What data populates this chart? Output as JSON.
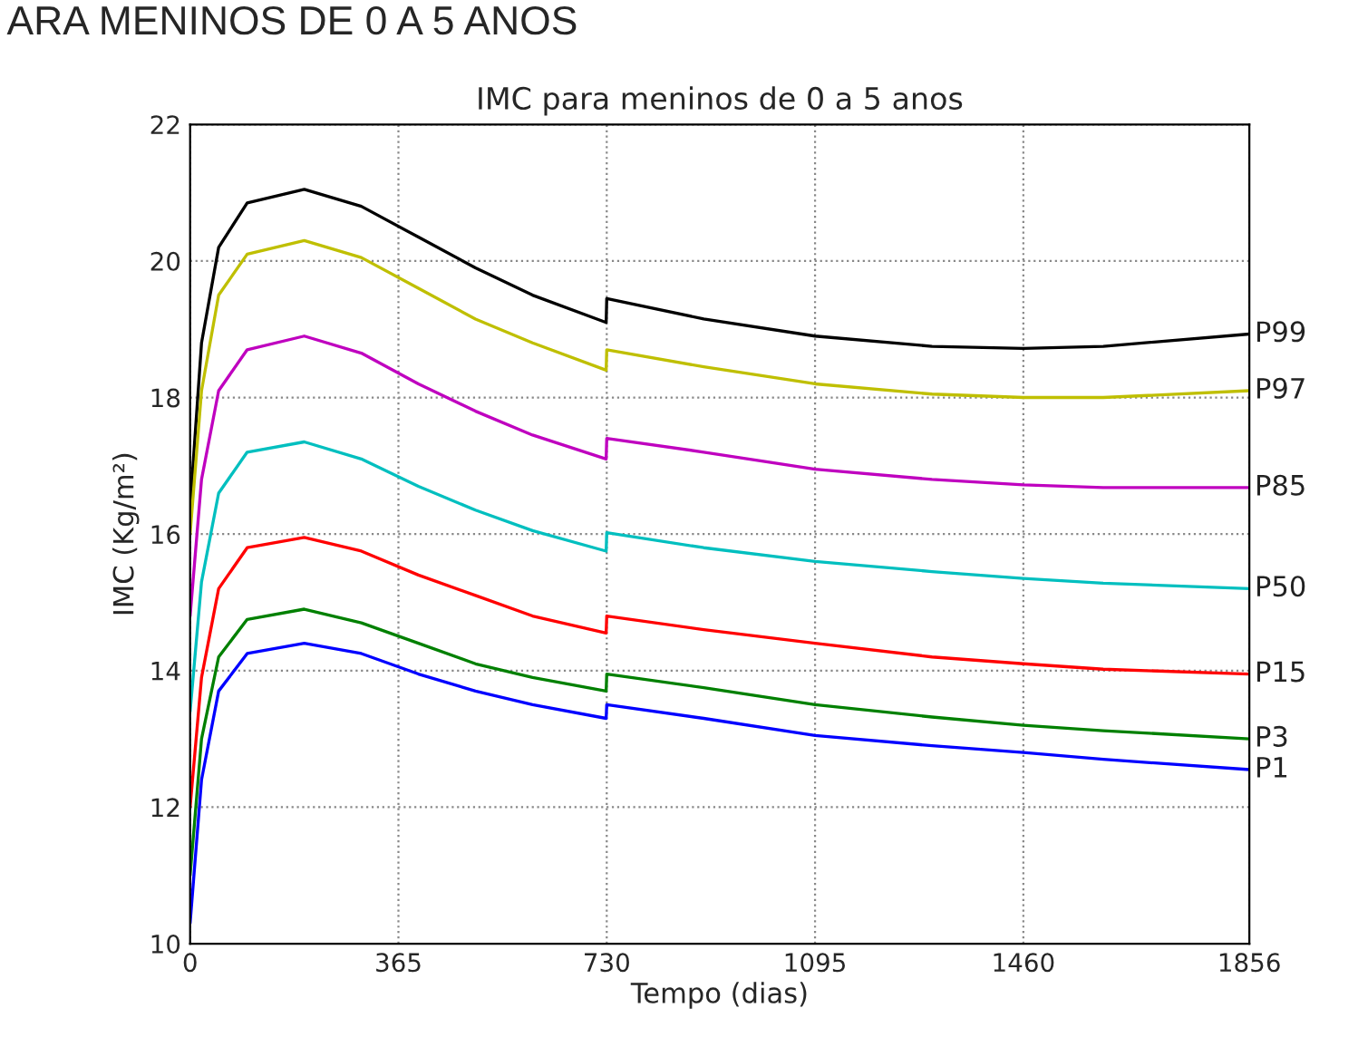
{
  "chart_data": {
    "type": "line",
    "title": "IMC para meninos de 0 a 5 anos",
    "xlabel": "Tempo (dias)",
    "ylabel": "IMC (Kg/m²)",
    "annotations": [
      "ARA MENINOS DE 0 A 5 ANOS"
    ],
    "x": [
      0,
      20,
      50,
      100,
      200,
      300,
      400,
      500,
      600,
      729,
      730,
      900,
      1095,
      1300,
      1460,
      1600,
      1856
    ],
    "series": [
      {
        "name": "P99",
        "color": "#000000",
        "values": [
          16.4,
          18.8,
          20.2,
          20.85,
          21.05,
          20.8,
          20.35,
          19.9,
          19.5,
          19.1,
          19.45,
          19.15,
          18.9,
          18.75,
          18.72,
          18.75,
          18.93
        ]
      },
      {
        "name": "P97",
        "color": "#bfbf00",
        "values": [
          16.0,
          18.1,
          19.5,
          20.1,
          20.3,
          20.05,
          19.6,
          19.15,
          18.8,
          18.4,
          18.7,
          18.45,
          18.2,
          18.05,
          18.0,
          18.0,
          18.1
        ]
      },
      {
        "name": "P85",
        "color": "#bf00bf",
        "values": [
          14.8,
          16.8,
          18.1,
          18.7,
          18.9,
          18.65,
          18.2,
          17.8,
          17.45,
          17.1,
          17.4,
          17.2,
          16.95,
          16.8,
          16.72,
          16.68,
          16.68
        ]
      },
      {
        "name": "P50",
        "color": "#00bfbf",
        "values": [
          13.4,
          15.3,
          16.6,
          17.2,
          17.35,
          17.1,
          16.7,
          16.35,
          16.05,
          15.75,
          16.02,
          15.8,
          15.6,
          15.45,
          15.35,
          15.28,
          15.2
        ]
      },
      {
        "name": "P15",
        "color": "#ff0000",
        "values": [
          12.0,
          13.9,
          15.2,
          15.8,
          15.95,
          15.75,
          15.4,
          15.1,
          14.8,
          14.55,
          14.8,
          14.6,
          14.4,
          14.2,
          14.1,
          14.02,
          13.95
        ]
      },
      {
        "name": "P3",
        "color": "#008000",
        "values": [
          11.0,
          13.0,
          14.2,
          14.75,
          14.9,
          14.7,
          14.4,
          14.1,
          13.9,
          13.7,
          13.95,
          13.75,
          13.5,
          13.32,
          13.2,
          13.12,
          13.0
        ]
      },
      {
        "name": "P1",
        "color": "#0000ff",
        "values": [
          10.3,
          12.4,
          13.7,
          14.25,
          14.4,
          14.25,
          13.95,
          13.7,
          13.5,
          13.3,
          13.5,
          13.3,
          13.05,
          12.9,
          12.8,
          12.7,
          12.55
        ]
      }
    ],
    "xlim": [
      0,
      1856
    ],
    "xticks": [
      0,
      365,
      730,
      1095,
      1460,
      1856
    ],
    "ylim": [
      10,
      22
    ],
    "yticks": [
      10,
      12,
      14,
      16,
      18,
      20,
      22
    ],
    "grid": true,
    "legend": false,
    "line_style": "solid",
    "marker": "none"
  }
}
